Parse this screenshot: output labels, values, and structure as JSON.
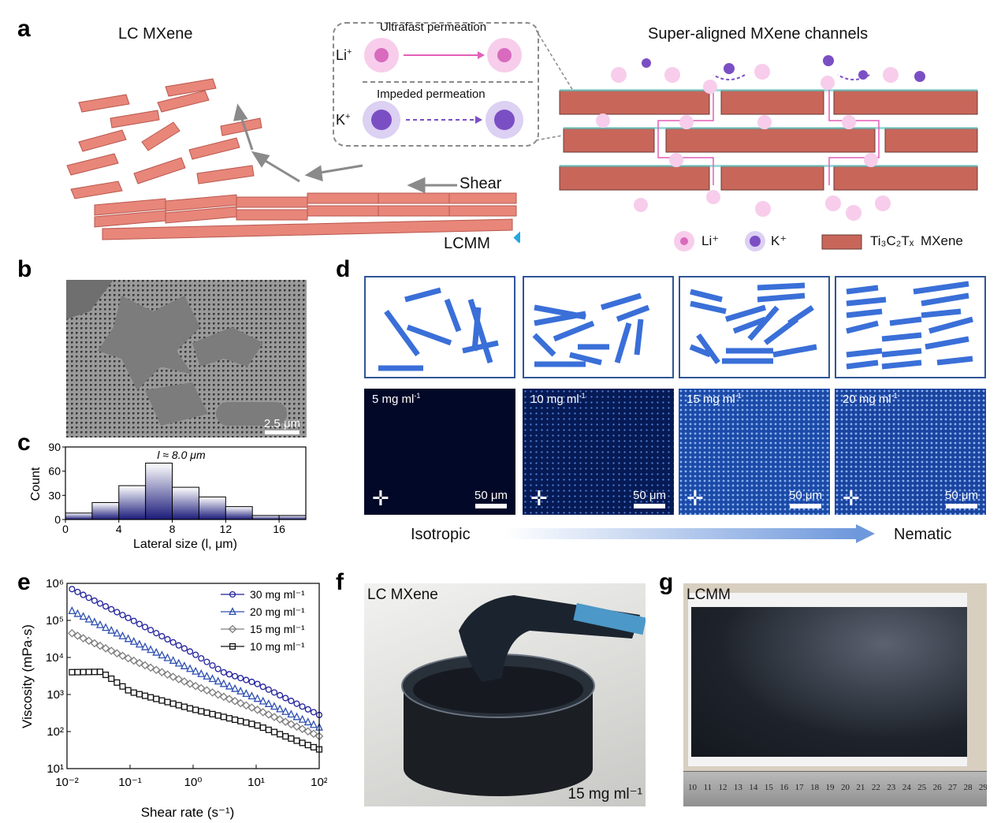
{
  "figure": {
    "panel_labels": {
      "a": "a",
      "b": "b",
      "c": "c",
      "d": "d",
      "e": "e",
      "f": "f",
      "g": "g"
    },
    "panel_a": {
      "left_title": "LC MXene",
      "right_title": "Super-aligned MXene channels",
      "inset_top": "Ultrafast permeation",
      "inset_bottom": "Impeded permeation",
      "ion_li": "Li",
      "ion_k": "K",
      "ion_charge": "+",
      "shear": "Shear",
      "lcmm": "LCMM",
      "legend_li": "Li⁺",
      "legend_k": "K⁺",
      "legend_mxene_formula": "Ti₃C₂Tₓ",
      "legend_mxene": "MXene",
      "colors": {
        "flake": "#e8867a",
        "li": "#e27bc9",
        "k": "#7b4fc4",
        "arrow": "#29a7df"
      }
    },
    "panel_b": {
      "scale_bar": "2.5 μm"
    },
    "panel_c": {
      "annotation": "l ≈ 8.0 μm",
      "ylabel": "Count",
      "xlabel": "Lateral size (l, μm)",
      "chart_data": {
        "type": "bar",
        "bin_edges": [
          0,
          2,
          4,
          6,
          8,
          10,
          12,
          14,
          16,
          18
        ],
        "values": [
          8,
          21,
          42,
          70,
          40,
          28,
          16,
          5,
          5
        ],
        "xticks": [
          0,
          4,
          8,
          12,
          16
        ],
        "yticks": [
          0,
          30,
          60,
          90
        ],
        "xlim": [
          0,
          18
        ],
        "ylim": [
          0,
          90
        ],
        "xlabel": "Lateral size (l, μm)",
        "ylabel": "Count"
      }
    },
    "panel_d": {
      "concentrations": [
        "5 mg ml",
        "10 mg ml",
        "15 mg ml",
        "20 mg ml"
      ],
      "conc_superscript": "-1",
      "scale_bar": "50 μm",
      "left_label": "Isotropic",
      "right_label": "Nematic",
      "brightness": [
        0.03,
        0.35,
        0.65,
        0.6
      ]
    },
    "panel_e": {
      "ylabel": "Viscosity (mPa·s)",
      "xlabel": "Shear rate (s⁻¹)",
      "chart_data": {
        "type": "scatter",
        "x_scale": "log",
        "y_scale": "log",
        "xlim": [
          0.01,
          100
        ],
        "ylim": [
          10,
          1000000
        ],
        "xticks": [
          "10⁻²",
          "10⁻¹",
          "10⁰",
          "10¹",
          "10²"
        ],
        "yticks": [
          "10¹",
          "10²",
          "10³",
          "10⁴",
          "10⁵",
          "10⁶"
        ],
        "legend_position": "top-right",
        "series": [
          {
            "name": "30 mg ml⁻¹",
            "marker": "circle",
            "color": "#1f1f9a",
            "points": [
              [
                0.012,
                700000
              ],
              [
                0.1,
                110000
              ],
              [
                1,
                13000
              ],
              [
                3,
                4000
              ],
              [
                10,
                2000
              ],
              [
                100,
                280
              ]
            ]
          },
          {
            "name": "20 mg ml⁻¹",
            "marker": "triangle",
            "color": "#2e4fb0",
            "points": [
              [
                0.012,
                180000
              ],
              [
                0.1,
                30000
              ],
              [
                1,
                4500
              ],
              [
                10,
                800
              ],
              [
                100,
                130
              ]
            ]
          },
          {
            "name": "15 mg ml⁻¹",
            "marker": "diamond",
            "color": "#7f7f7f",
            "points": [
              [
                0.012,
                45000
              ],
              [
                0.1,
                9000
              ],
              [
                1,
                1800
              ],
              [
                10,
                400
              ],
              [
                100,
                75
              ]
            ]
          },
          {
            "name": "10 mg ml⁻¹",
            "marker": "square",
            "color": "#111111",
            "points": [
              [
                0.012,
                4000
              ],
              [
                0.035,
                4100
              ],
              [
                0.1,
                1200
              ],
              [
                1,
                400
              ],
              [
                10,
                150
              ],
              [
                100,
                33
              ]
            ]
          }
        ]
      }
    },
    "panel_f": {
      "label": "LC MXene",
      "conc": "15 mg ml⁻¹"
    },
    "panel_g": {
      "label": "LCMM",
      "ruler": [
        "10",
        "11",
        "12",
        "13",
        "14",
        "15",
        "16",
        "17",
        "18",
        "19",
        "20",
        "21",
        "22",
        "23",
        "24",
        "25",
        "26",
        "27",
        "28",
        "29"
      ]
    }
  }
}
